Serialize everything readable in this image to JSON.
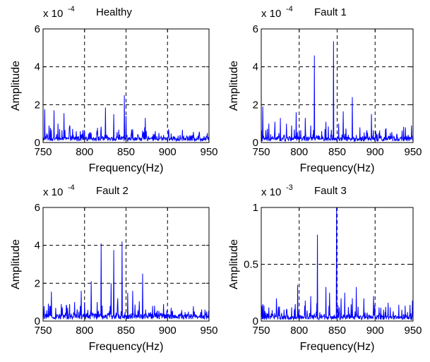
{
  "chart_data": [
    {
      "type": "line",
      "title": "Healthy",
      "xlabel": "Frequency(Hz)",
      "ylabel": "Amplitude",
      "scale_base": "x 10",
      "scale_exponent": "-4",
      "xlim": [
        750,
        950
      ],
      "ylim": [
        0,
        6
      ],
      "xticks": [
        750,
        800,
        850,
        900,
        950
      ],
      "xtick_labels": [
        "750",
        "800",
        "850",
        "900",
        "950"
      ],
      "yticks": [
        0,
        2,
        4,
        6
      ],
      "ytick_labels": [
        "0",
        "2",
        "4",
        "6"
      ],
      "grid": true,
      "series": [
        {
          "color": "#0000ff",
          "baseline": 0.25,
          "noise": 0.35,
          "peaks": [
            [
              752,
              1.75
            ],
            [
              757,
              0.9
            ],
            [
              763,
              1.7
            ],
            [
              768,
              1.0
            ],
            [
              775,
              1.55
            ],
            [
              782,
              0.9
            ],
            [
              790,
              0.6
            ],
            [
              800,
              0.55
            ],
            [
              808,
              0.5
            ],
            [
              815,
              0.4
            ],
            [
              825,
              1.85
            ],
            [
              835,
              1.5
            ],
            [
              848,
              2.5
            ],
            [
              850,
              1.4
            ],
            [
              858,
              0.7
            ],
            [
              873,
              1.3
            ],
            [
              885,
              0.6
            ],
            [
              895,
              0.4
            ],
            [
              915,
              0.4
            ],
            [
              948,
              0.5
            ]
          ]
        }
      ]
    },
    {
      "type": "line",
      "title": "Fault 1",
      "xlabel": "Frequency(Hz)",
      "ylabel": "Amplitude",
      "scale_base": "x 10",
      "scale_exponent": "-4",
      "xlim": [
        750,
        950
      ],
      "ylim": [
        0,
        6
      ],
      "xticks": [
        750,
        800,
        850,
        900,
        950
      ],
      "xtick_labels": [
        "750",
        "800",
        "850",
        "900",
        "950"
      ],
      "yticks": [
        0,
        2,
        4,
        6
      ],
      "ytick_labels": [
        "0",
        "2",
        "4",
        "6"
      ],
      "grid": true,
      "series": [
        {
          "color": "#0000ff",
          "baseline": 0.25,
          "noise": 0.35,
          "peaks": [
            [
              752,
              1.9
            ],
            [
              760,
              1.0
            ],
            [
              768,
              1.1
            ],
            [
              775,
              1.3
            ],
            [
              783,
              1.0
            ],
            [
              790,
              0.9
            ],
            [
              796,
              1.6
            ],
            [
              808,
              1.3
            ],
            [
              815,
              0.9
            ],
            [
              820,
              4.6
            ],
            [
              835,
              1.1
            ],
            [
              845,
              5.35
            ],
            [
              852,
              1.0
            ],
            [
              858,
              1.65
            ],
            [
              870,
              2.4
            ],
            [
              880,
              0.8
            ],
            [
              895,
              1.5
            ],
            [
              905,
              0.5
            ],
            [
              920,
              0.5
            ],
            [
              940,
              0.8
            ],
            [
              948,
              0.9
            ]
          ]
        }
      ]
    },
    {
      "type": "line",
      "title": "Fault 2",
      "xlabel": "Frequency(Hz)",
      "ylabel": "Amplitude",
      "scale_base": "x 10",
      "scale_exponent": "-4",
      "xlim": [
        750,
        950
      ],
      "ylim": [
        0,
        6
      ],
      "xticks": [
        750,
        800,
        850,
        900,
        950
      ],
      "xtick_labels": [
        "750",
        "800",
        "850",
        "900",
        "950"
      ],
      "yticks": [
        0,
        2,
        4,
        6
      ],
      "ytick_labels": [
        "0",
        "2",
        "4",
        "6"
      ],
      "grid": true,
      "series": [
        {
          "color": "#0000ff",
          "baseline": 0.3,
          "noise": 0.45,
          "peaks": [
            [
              760,
              1.55
            ],
            [
              765,
              0.7
            ],
            [
              772,
              0.9
            ],
            [
              778,
              0.85
            ],
            [
              782,
              0.9
            ],
            [
              788,
              1.0
            ],
            [
              796,
              1.6
            ],
            [
              800,
              1.0
            ],
            [
              808,
              2.1
            ],
            [
              815,
              1.0
            ],
            [
              820,
              4.1
            ],
            [
              832,
              2.0
            ],
            [
              835,
              3.75
            ],
            [
              840,
              1.2
            ],
            [
              845,
              4.2
            ],
            [
              852,
              1.5
            ],
            [
              858,
              1.6
            ],
            [
              870,
              2.5
            ],
            [
              882,
              0.8
            ],
            [
              895,
              0.9
            ],
            [
              905,
              0.5
            ],
            [
              925,
              0.5
            ],
            [
              945,
              0.6
            ]
          ]
        }
      ]
    },
    {
      "type": "line",
      "title": "Fault 3",
      "xlabel": "Frequency(Hz)",
      "ylabel": "Amplitude",
      "scale_base": "x 10",
      "scale_exponent": "-3",
      "xlim": [
        750,
        950
      ],
      "ylim": [
        0,
        1
      ],
      "xticks": [
        750,
        800,
        850,
        900,
        950
      ],
      "xtick_labels": [
        "750",
        "800",
        "850",
        "900",
        "950"
      ],
      "yticks": [
        0,
        0.5,
        1
      ],
      "ytick_labels": [
        "0",
        "0.5",
        "1"
      ],
      "grid": true,
      "series": [
        {
          "color": "#0000ff",
          "baseline": 0.04,
          "noise": 0.08,
          "peaks": [
            [
              752,
              0.15
            ],
            [
              760,
              0.12
            ],
            [
              770,
              0.2
            ],
            [
              780,
              0.1
            ],
            [
              790,
              0.12
            ],
            [
              798,
              0.32
            ],
            [
              808,
              0.18
            ],
            [
              815,
              0.22
            ],
            [
              824,
              0.76
            ],
            [
              835,
              0.3
            ],
            [
              840,
              0.25
            ],
            [
              849,
              1.0
            ],
            [
              855,
              0.2
            ],
            [
              860,
              0.25
            ],
            [
              870,
              0.2
            ],
            [
              875,
              0.3
            ],
            [
              885,
              0.2
            ],
            [
              898,
              0.22
            ],
            [
              905,
              0.12
            ],
            [
              920,
              0.12
            ],
            [
              935,
              0.1
            ],
            [
              949,
              0.18
            ]
          ]
        }
      ]
    }
  ]
}
